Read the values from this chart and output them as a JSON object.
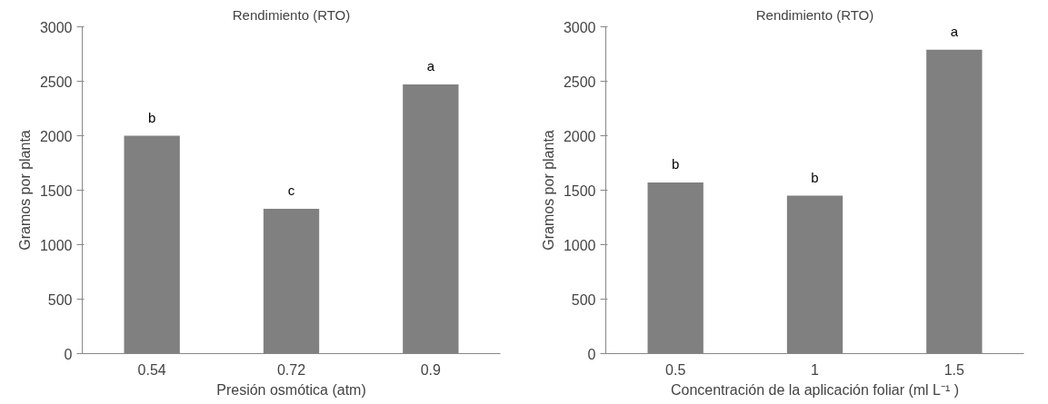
{
  "chart_data": [
    {
      "type": "bar",
      "title": "Rendimiento (RTO)",
      "xlabel": "Presión osmótica (atm)",
      "ylabel": "Gramos por planta",
      "categories": [
        "0.54",
        "0.72",
        "0.9"
      ],
      "values": [
        2000,
        1330,
        2470
      ],
      "color": "#808080",
      "ylim": [
        0,
        3000
      ],
      "yticks": [
        0,
        500,
        1000,
        1500,
        2000,
        2500,
        3000
      ],
      "grid": false,
      "annotations": [
        {
          "text": "b",
          "x": "0.54",
          "y": 2000
        },
        {
          "text": "c",
          "x": "0.72",
          "y": 1330
        },
        {
          "text": "a",
          "x": "0.9",
          "y": 2470
        }
      ]
    },
    {
      "type": "bar",
      "title": "Rendimiento (RTO)",
      "xlabel": "Concentración de la aplicación foliar (ml L⁻¹ )",
      "ylabel": "Gramos por planta",
      "categories": [
        "0.5",
        "1",
        "1.5"
      ],
      "values": [
        1570,
        1450,
        2790
      ],
      "color": "#808080",
      "ylim": [
        0,
        3000
      ],
      "yticks": [
        0,
        500,
        1000,
        1500,
        2000,
        2500,
        3000
      ],
      "grid": false,
      "annotations": [
        {
          "text": "b",
          "x": "0.5",
          "y": 1570
        },
        {
          "text": "b",
          "x": "1",
          "y": 1450
        },
        {
          "text": "a",
          "x": "1.5",
          "y": 2790
        }
      ]
    }
  ]
}
